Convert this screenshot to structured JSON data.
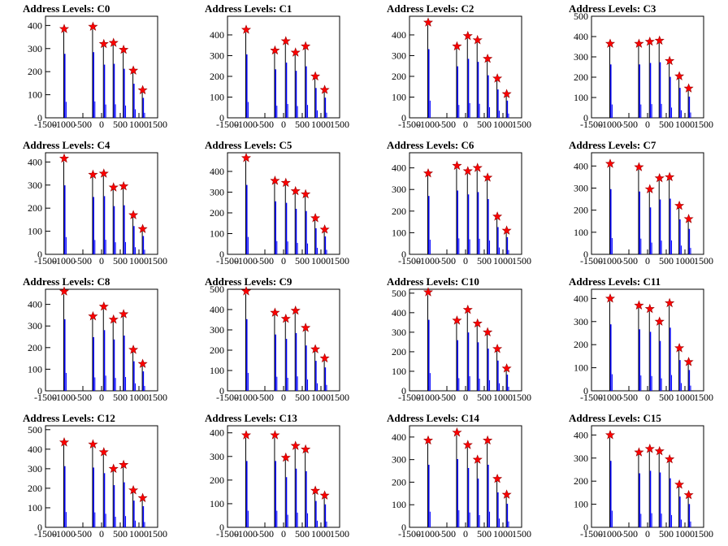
{
  "chart_data": [
    {
      "type": "bar",
      "title": "Address Levels: C0",
      "xlim": [
        -1500,
        1500
      ],
      "ylim": [
        0,
        440
      ],
      "yticks": [
        0,
        100,
        200,
        300,
        400
      ],
      "xticks": [
        -1500,
        -1000,
        -500,
        0,
        500,
        1000,
        1500
      ],
      "peaks": [
        -1000,
        -230,
        60,
        320,
        590,
        850,
        1100
      ],
      "markers": [
        385,
        395,
        320,
        325,
        295,
        205,
        120
      ]
    },
    {
      "type": "bar",
      "title": "Address Levels: C1",
      "xlim": [
        -1500,
        1500
      ],
      "ylim": [
        0,
        490
      ],
      "yticks": [
        0,
        100,
        200,
        300,
        400
      ],
      "xticks": [
        -1500,
        -1000,
        -500,
        0,
        500,
        1000,
        1500
      ],
      "peaks": [
        -1000,
        -230,
        60,
        320,
        590,
        850,
        1100
      ],
      "markers": [
        425,
        325,
        370,
        315,
        345,
        200,
        135
      ]
    },
    {
      "type": "bar",
      "title": "Address Levels: C2",
      "xlim": [
        -1500,
        1500
      ],
      "ylim": [
        0,
        490
      ],
      "yticks": [
        0,
        100,
        200,
        300,
        400
      ],
      "xticks": [
        -1500,
        -1000,
        -500,
        0,
        500,
        1000,
        1500
      ],
      "peaks": [
        -1000,
        -230,
        60,
        320,
        590,
        850,
        1100
      ],
      "markers": [
        460,
        345,
        395,
        375,
        285,
        190,
        115
      ]
    },
    {
      "type": "bar",
      "title": "Address Levels: C3",
      "xlim": [
        -1500,
        1500
      ],
      "ylim": [
        0,
        500
      ],
      "yticks": [
        0,
        100,
        200,
        300,
        400,
        500
      ],
      "xticks": [
        -1500,
        -1000,
        -500,
        0,
        500,
        1000,
        1500
      ],
      "peaks": [
        -1000,
        -230,
        60,
        320,
        590,
        850,
        1100
      ],
      "markers": [
        365,
        365,
        375,
        380,
        280,
        205,
        145
      ]
    },
    {
      "type": "bar",
      "title": "Address Levels: C4",
      "xlim": [
        -1500,
        1500
      ],
      "ylim": [
        0,
        440
      ],
      "yticks": [
        0,
        100,
        200,
        300,
        400
      ],
      "xticks": [
        -1500,
        -1000,
        -500,
        0,
        500,
        1000,
        1500
      ],
      "peaks": [
        -1000,
        -230,
        60,
        320,
        590,
        850,
        1100
      ],
      "markers": [
        415,
        345,
        350,
        290,
        295,
        170,
        110
      ]
    },
    {
      "type": "bar",
      "title": "Address Levels: C5",
      "xlim": [
        -1500,
        1500
      ],
      "ylim": [
        0,
        490
      ],
      "yticks": [
        0,
        100,
        200,
        300,
        400
      ],
      "xticks": [
        -1500,
        -1000,
        -500,
        0,
        500,
        1000,
        1500
      ],
      "peaks": [
        -1000,
        -230,
        60,
        320,
        590,
        850,
        1100
      ],
      "markers": [
        465,
        355,
        345,
        305,
        290,
        175,
        120
      ]
    },
    {
      "type": "bar",
      "title": "Address Levels: C6",
      "xlim": [
        -1500,
        1500
      ],
      "ylim": [
        0,
        470
      ],
      "yticks": [
        0,
        100,
        200,
        300,
        400
      ],
      "xticks": [
        -1500,
        -1000,
        -500,
        0,
        500,
        1000,
        1500
      ],
      "peaks": [
        -1000,
        -230,
        60,
        320,
        590,
        850,
        1100
      ],
      "markers": [
        375,
        410,
        385,
        400,
        355,
        175,
        110
      ]
    },
    {
      "type": "bar",
      "title": "Address Levels: C7",
      "xlim": [
        -1500,
        1500
      ],
      "ylim": [
        0,
        460
      ],
      "yticks": [
        0,
        100,
        200,
        300,
        400
      ],
      "xticks": [
        -1500,
        -1000,
        -500,
        0,
        500,
        1000,
        1500
      ],
      "peaks": [
        -1000,
        -230,
        60,
        320,
        590,
        850,
        1100
      ],
      "markers": [
        410,
        395,
        295,
        345,
        350,
        220,
        160
      ]
    },
    {
      "type": "bar",
      "title": "Address Levels: C8",
      "xlim": [
        -1500,
        1500
      ],
      "ylim": [
        0,
        470
      ],
      "yticks": [
        0,
        100,
        200,
        300,
        400
      ],
      "xticks": [
        -1500,
        -1000,
        -500,
        0,
        500,
        1000,
        1500
      ],
      "peaks": [
        -1000,
        -230,
        60,
        320,
        590,
        850,
        1100
      ],
      "markers": [
        460,
        345,
        390,
        330,
        355,
        190,
        125
      ]
    },
    {
      "type": "bar",
      "title": "Address Levels: C9",
      "xlim": [
        -1500,
        1500
      ],
      "ylim": [
        0,
        500
      ],
      "yticks": [
        0,
        100,
        200,
        300,
        400,
        500
      ],
      "xticks": [
        -1500,
        -1000,
        -500,
        0,
        500,
        1000,
        1500
      ],
      "peaks": [
        -1000,
        -230,
        60,
        320,
        590,
        850,
        1100
      ],
      "markers": [
        490,
        385,
        355,
        395,
        310,
        205,
        160
      ]
    },
    {
      "type": "bar",
      "title": "Address Levels: C10",
      "xlim": [
        -1500,
        1500
      ],
      "ylim": [
        0,
        520
      ],
      "yticks": [
        0,
        100,
        200,
        300,
        400,
        500
      ],
      "xticks": [
        -1500,
        -1000,
        -500,
        0,
        500,
        1000,
        1500
      ],
      "peaks": [
        -1000,
        -230,
        60,
        320,
        590,
        850,
        1100
      ],
      "markers": [
        505,
        360,
        415,
        345,
        300,
        215,
        115
      ]
    },
    {
      "type": "bar",
      "title": "Address Levels: C11",
      "xlim": [
        -1500,
        1500
      ],
      "ylim": [
        0,
        440
      ],
      "yticks": [
        0,
        100,
        200,
        300,
        400
      ],
      "xticks": [
        -1500,
        -1000,
        -500,
        0,
        500,
        1000,
        1500
      ],
      "peaks": [
        -1000,
        -230,
        60,
        320,
        590,
        850,
        1100
      ],
      "markers": [
        400,
        370,
        355,
        300,
        380,
        185,
        125
      ]
    },
    {
      "type": "bar",
      "title": "Address Levels: C12",
      "xlim": [
        -1500,
        1500
      ],
      "ylim": [
        0,
        520
      ],
      "yticks": [
        0,
        100,
        200,
        300,
        400,
        500
      ],
      "xticks": [
        -1500,
        -1000,
        -500,
        0,
        500,
        1000,
        1500
      ],
      "peaks": [
        -1000,
        -230,
        60,
        320,
        590,
        850,
        1100
      ],
      "markers": [
        435,
        425,
        385,
        300,
        320,
        190,
        150
      ]
    },
    {
      "type": "bar",
      "title": "Address Levels: C13",
      "xlim": [
        -1500,
        1500
      ],
      "ylim": [
        0,
        430
      ],
      "yticks": [
        0,
        100,
        200,
        300,
        400
      ],
      "xticks": [
        -1500,
        -1000,
        -500,
        0,
        500,
        1000,
        1500
      ],
      "peaks": [
        -1000,
        -230,
        60,
        320,
        590,
        850,
        1100
      ],
      "markers": [
        390,
        390,
        295,
        345,
        330,
        155,
        135
      ]
    },
    {
      "type": "bar",
      "title": "Address Levels: C14",
      "xlim": [
        -1500,
        1500
      ],
      "ylim": [
        0,
        450
      ],
      "yticks": [
        0,
        100,
        200,
        300,
        400
      ],
      "xticks": [
        -1500,
        -1000,
        -500,
        0,
        500,
        1000,
        1500
      ],
      "peaks": [
        -1000,
        -230,
        60,
        320,
        590,
        850,
        1100
      ],
      "markers": [
        385,
        420,
        365,
        300,
        385,
        215,
        145
      ]
    },
    {
      "type": "bar",
      "title": "Address Levels: C15",
      "xlim": [
        -1500,
        1500
      ],
      "ylim": [
        0,
        440
      ],
      "yticks": [
        0,
        100,
        200,
        300,
        400
      ],
      "xticks": [
        -1500,
        -1000,
        -500,
        0,
        500,
        1000,
        1500
      ],
      "peaks": [
        -1000,
        -230,
        60,
        320,
        590,
        850,
        1100
      ],
      "markers": [
        400,
        325,
        340,
        330,
        295,
        185,
        140
      ]
    }
  ],
  "colors": {
    "bar_black": "#000000",
    "bar_blue": "#0000ff",
    "marker": "#ff0000",
    "marker_edge": "#990000"
  }
}
